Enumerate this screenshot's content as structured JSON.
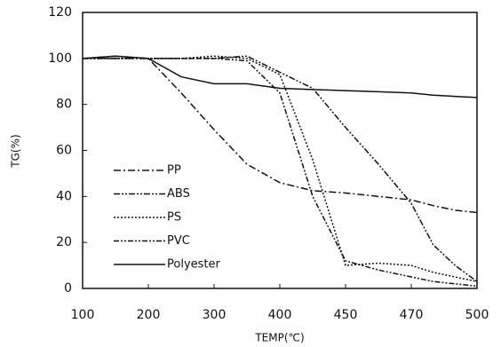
{
  "chart_data": {
    "type": "line",
    "x_label": "TEMP(℃)",
    "y_label": "TG(%)",
    "x": [
      100,
      150,
      200,
      250,
      300,
      350,
      400,
      425,
      450,
      460,
      470,
      480,
      490,
      500
    ],
    "series": [
      {
        "name": "PP",
        "color": "#111111",
        "dash": "8 3 2 3",
        "values": [
          100,
          101,
          100,
          85,
          69,
          54,
          46,
          42.5,
          41.5,
          40,
          38.5,
          36,
          34,
          33
        ]
      },
      {
        "name": "ABS",
        "color": "#111111",
        "dash": "7 2 2 2 2 2",
        "values": [
          100,
          100,
          100,
          100,
          100,
          101,
          94,
          87,
          70,
          54,
          37,
          19,
          10,
          3
        ]
      },
      {
        "name": "PS",
        "color": "#111111",
        "dash": "2 2",
        "values": [
          100,
          100,
          100,
          100,
          101,
          100,
          93,
          56,
          10,
          11,
          10,
          7,
          5,
          3
        ]
      },
      {
        "name": "PVC",
        "color": "#111111",
        "dash": "6 2 2 2 2 2",
        "values": [
          100,
          100,
          100,
          100,
          100,
          99,
          85,
          40,
          12,
          8,
          5,
          3,
          2,
          1
        ]
      },
      {
        "name": "Polyester",
        "color": "#111111",
        "dash": "",
        "values": [
          100,
          101,
          100,
          92,
          89,
          89,
          87,
          86.5,
          86,
          85.5,
          85,
          84,
          83.5,
          83
        ]
      }
    ],
    "xlim": [
      100,
      500
    ],
    "xticks": [
      100,
      200,
      300,
      400,
      450,
      470,
      500
    ],
    "ylim": [
      0,
      120
    ],
    "yticks": [
      0,
      20,
      40,
      60,
      80,
      100,
      120
    ],
    "legend": "lower left"
  }
}
